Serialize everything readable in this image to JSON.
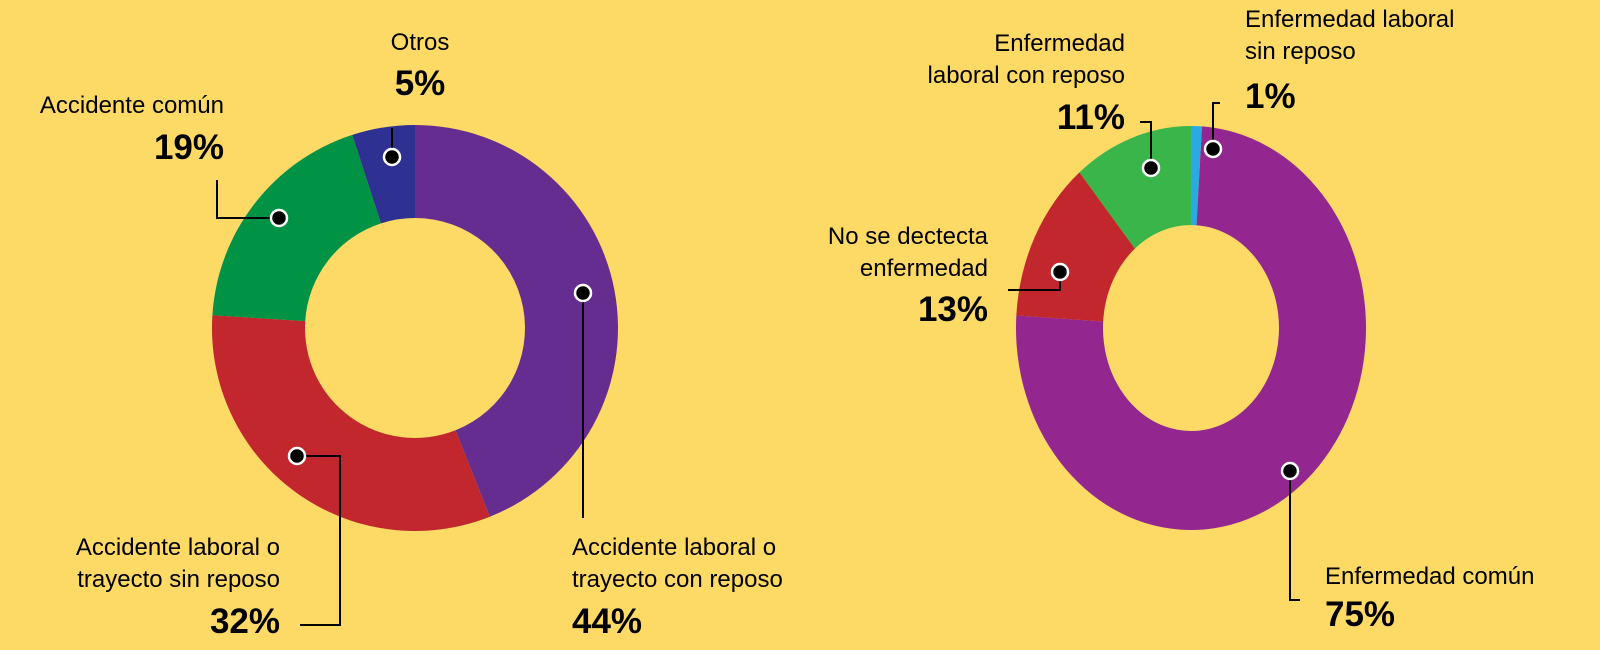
{
  "chart_data": [
    {
      "type": "donut",
      "categories": [
        "Accidente laboral o\ntrayecto con reposo",
        "Accidente laboral o\ntrayecto sin reposo",
        "Accidente común",
        "Otros"
      ],
      "values": [
        44,
        32,
        19,
        5
      ],
      "value_labels": [
        "44%",
        "32%",
        "19%",
        "5%"
      ],
      "colors": [
        "#662d91",
        "#c1272d",
        "#009245",
        "#2e3192"
      ]
    },
    {
      "type": "donut",
      "categories": [
        "Enfermedad laboral\nsin reposo",
        "Enfermedad común",
        "No se dectecta\nenfermedad",
        "Enfermedad\nlaboral con reposo"
      ],
      "values": [
        1,
        75,
        13,
        11
      ],
      "value_labels": [
        "1%",
        "75%",
        "13%",
        "11%"
      ],
      "colors": [
        "#29abe2",
        "#93278f",
        "#c1272d",
        "#39b54a"
      ]
    }
  ]
}
